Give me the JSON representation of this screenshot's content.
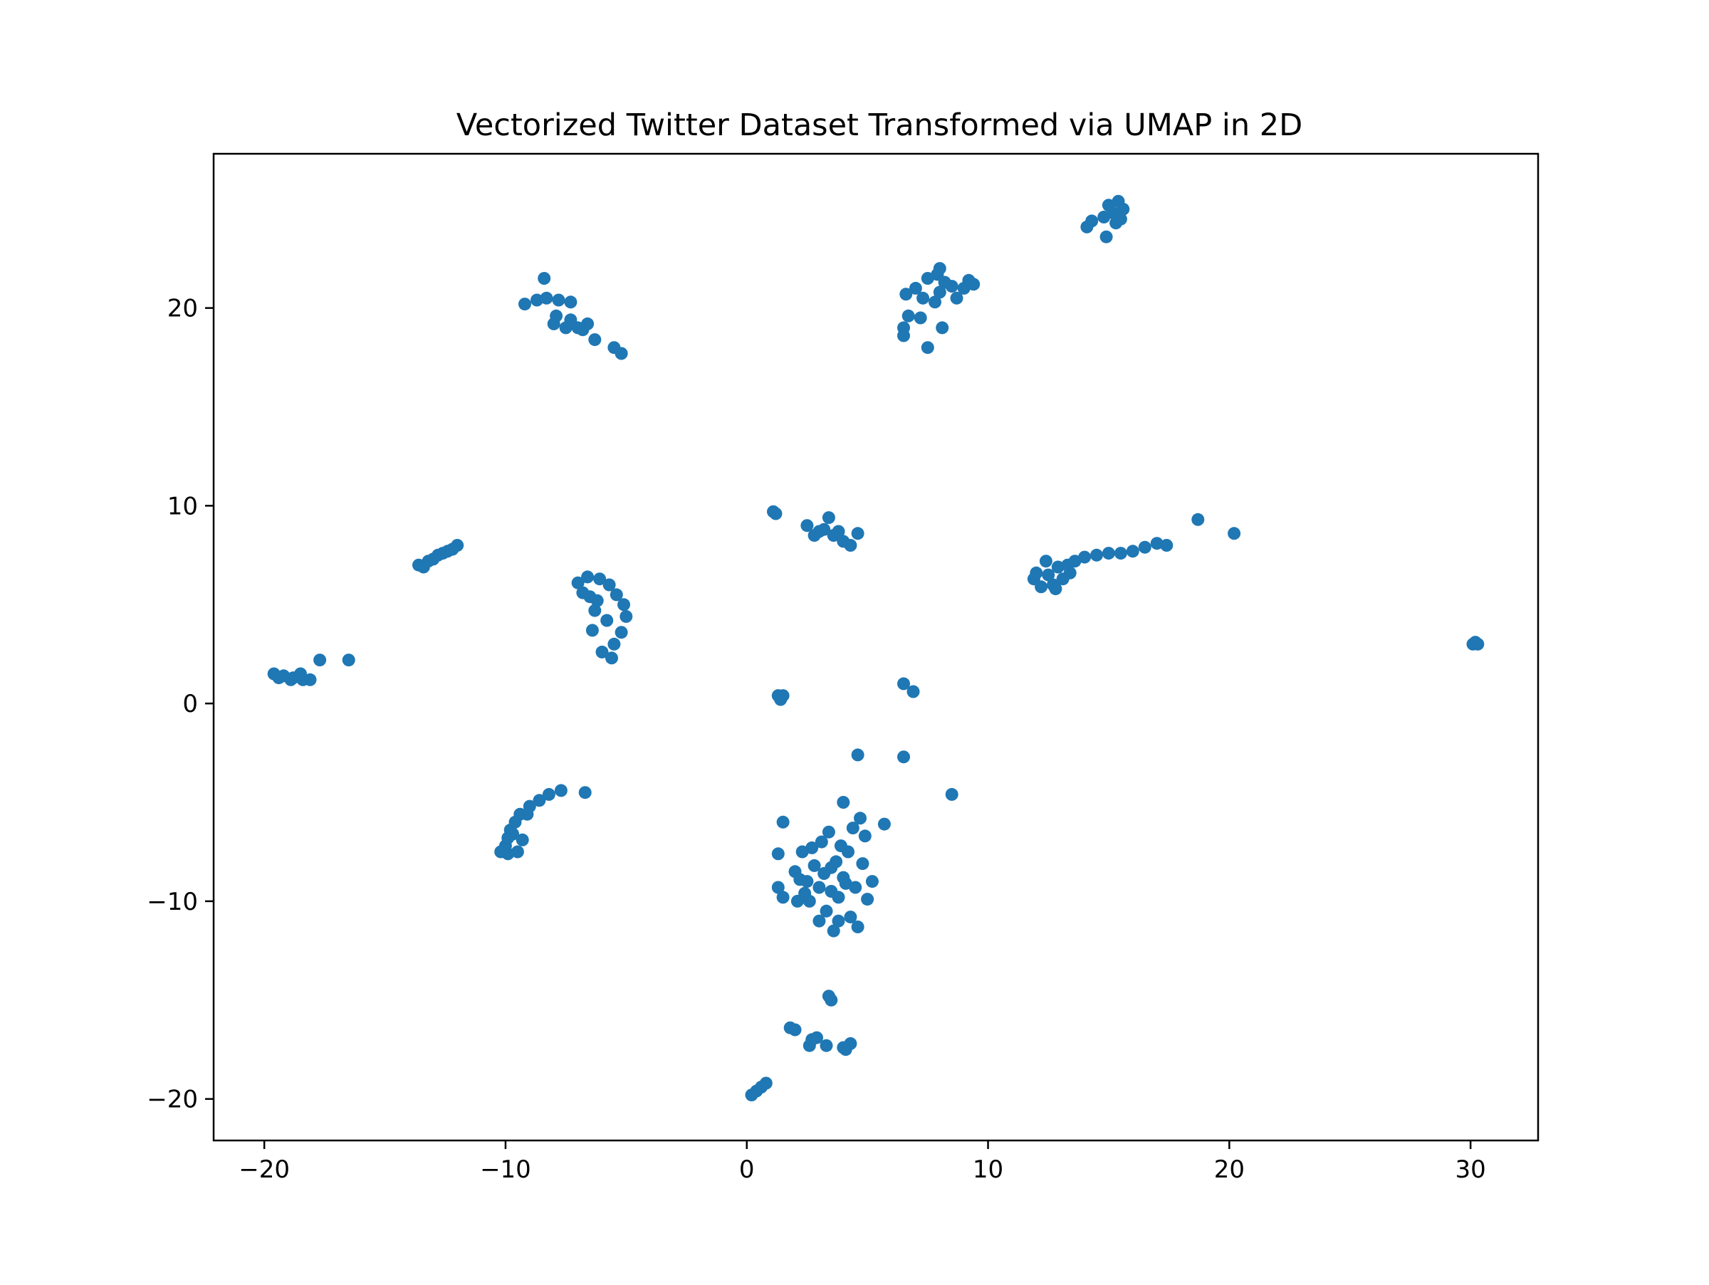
{
  "chart_data": {
    "type": "scatter",
    "title": "Vectorized Twitter Dataset Transformed via UMAP in 2D",
    "xlabel": "",
    "ylabel": "",
    "xlim": [
      -22.1,
      32.8
    ],
    "ylim": [
      -22.1,
      27.8
    ],
    "xticks": [
      -20,
      -10,
      0,
      10,
      20,
      30
    ],
    "yticks": [
      -20,
      -10,
      0,
      10,
      20
    ],
    "xtick_labels": [
      "−20",
      "−10",
      "0",
      "10",
      "20",
      "30"
    ],
    "ytick_labels": [
      "−20",
      "−10",
      "0",
      "10",
      "20"
    ],
    "grid": false,
    "legend": "none",
    "marker_color": "#1f77b4",
    "clusters": [
      {
        "points": [
          [
            -19.6,
            1.5
          ],
          [
            -19.2,
            1.4
          ],
          [
            -18.8,
            1.3
          ],
          [
            -18.4,
            1.2
          ],
          [
            -18.1,
            1.2
          ],
          [
            -18.5,
            1.5
          ],
          [
            -19.4,
            1.3
          ],
          [
            -17.7,
            2.2
          ],
          [
            -16.5,
            2.2
          ],
          [
            -18.9,
            1.2
          ]
        ]
      },
      {
        "points": [
          [
            -13.6,
            7.0
          ],
          [
            -13.2,
            7.2
          ],
          [
            -12.8,
            7.5
          ],
          [
            -12.4,
            7.7
          ],
          [
            -12.0,
            8.0
          ],
          [
            -13.0,
            7.3
          ],
          [
            -12.6,
            7.6
          ],
          [
            -13.4,
            6.9
          ],
          [
            -12.2,
            7.8
          ]
        ]
      },
      {
        "points": [
          [
            -9.9,
            -7.6
          ],
          [
            -10.0,
            -7.2
          ],
          [
            -9.9,
            -6.8
          ],
          [
            -9.8,
            -6.4
          ],
          [
            -9.6,
            -6.0
          ],
          [
            -9.4,
            -5.6
          ],
          [
            -9.0,
            -5.2
          ],
          [
            -8.6,
            -4.9
          ],
          [
            -8.2,
            -4.6
          ],
          [
            -7.7,
            -4.4
          ],
          [
            -6.7,
            -4.5
          ],
          [
            -9.5,
            -7.5
          ],
          [
            -9.3,
            -6.9
          ],
          [
            -10.2,
            -7.5
          ],
          [
            -9.7,
            -6.6
          ],
          [
            -9.1,
            -5.6
          ]
        ]
      },
      {
        "points": [
          [
            -9.2,
            20.2
          ],
          [
            -8.7,
            20.4
          ],
          [
            -8.3,
            20.5
          ],
          [
            -7.8,
            20.4
          ],
          [
            -7.3,
            20.3
          ],
          [
            -8.4,
            21.5
          ],
          [
            -8.0,
            19.2
          ],
          [
            -7.5,
            19.0
          ],
          [
            -7.0,
            19.0
          ],
          [
            -6.6,
            19.2
          ],
          [
            -7.3,
            19.4
          ],
          [
            -6.3,
            18.4
          ],
          [
            -5.5,
            18.0
          ],
          [
            -5.2,
            17.7
          ],
          [
            -7.9,
            19.6
          ],
          [
            -6.8,
            18.9
          ]
        ]
      },
      {
        "points": [
          [
            -7.0,
            6.1
          ],
          [
            -6.6,
            6.4
          ],
          [
            -6.1,
            6.3
          ],
          [
            -5.7,
            6.0
          ],
          [
            -5.4,
            5.5
          ],
          [
            -5.1,
            5.0
          ],
          [
            -5.0,
            4.4
          ],
          [
            -5.2,
            3.6
          ],
          [
            -5.5,
            3.0
          ],
          [
            -6.3,
            4.7
          ],
          [
            -6.4,
            3.7
          ],
          [
            -6.5,
            5.4
          ],
          [
            -6.0,
            2.6
          ],
          [
            -5.6,
            2.3
          ],
          [
            -6.8,
            5.6
          ],
          [
            -5.8,
            4.2
          ],
          [
            -6.2,
            5.2
          ]
        ]
      },
      {
        "points": [
          [
            0.2,
            -19.8
          ],
          [
            0.4,
            -19.6
          ],
          [
            0.6,
            -19.4
          ],
          [
            0.8,
            -19.2
          ],
          [
            1.8,
            -16.4
          ],
          [
            2.0,
            -16.5
          ],
          [
            2.6,
            -17.3
          ],
          [
            2.9,
            -16.9
          ],
          [
            3.3,
            -17.3
          ],
          [
            2.7,
            -17.0
          ],
          [
            3.5,
            -15.0
          ],
          [
            3.4,
            -14.8
          ],
          [
            4.1,
            -17.5
          ],
          [
            4.3,
            -17.2
          ],
          [
            4.0,
            -17.4
          ]
        ]
      },
      {
        "points": [
          [
            1.1,
            9.7
          ],
          [
            1.2,
            9.6
          ],
          [
            2.5,
            9.0
          ],
          [
            3.0,
            8.7
          ],
          [
            3.4,
            9.4
          ],
          [
            3.6,
            8.5
          ],
          [
            4.0,
            8.2
          ],
          [
            4.3,
            8.0
          ],
          [
            3.2,
            8.8
          ],
          [
            4.6,
            8.6
          ],
          [
            2.8,
            8.5
          ],
          [
            3.8,
            8.7
          ]
        ]
      },
      {
        "points": [
          [
            1.3,
            0.4
          ],
          [
            1.5,
            0.4
          ],
          [
            1.4,
            0.2
          ],
          [
            6.5,
            1.0
          ],
          [
            6.9,
            0.6
          ],
          [
            4.6,
            -2.6
          ],
          [
            6.5,
            -2.7
          ],
          [
            8.5,
            -4.6
          ]
        ]
      },
      {
        "points": [
          [
            1.3,
            -7.6
          ],
          [
            1.5,
            -6.0
          ],
          [
            1.3,
            -9.3
          ],
          [
            1.5,
            -9.8
          ],
          [
            2.0,
            -8.5
          ],
          [
            2.3,
            -7.5
          ],
          [
            2.5,
            -9.0
          ],
          [
            2.6,
            -10.0
          ],
          [
            2.8,
            -8.2
          ],
          [
            3.0,
            -9.3
          ],
          [
            3.1,
            -7.0
          ],
          [
            3.2,
            -8.6
          ],
          [
            3.3,
            -10.5
          ],
          [
            3.5,
            -9.5
          ],
          [
            3.4,
            -6.5
          ],
          [
            3.6,
            -11.5
          ],
          [
            3.7,
            -8.0
          ],
          [
            3.8,
            -9.8
          ],
          [
            4.0,
            -8.8
          ],
          [
            4.0,
            -5.0
          ],
          [
            4.2,
            -7.5
          ],
          [
            4.3,
            -10.8
          ],
          [
            4.5,
            -9.3
          ],
          [
            4.6,
            -11.3
          ],
          [
            4.8,
            -8.1
          ],
          [
            4.9,
            -6.7
          ],
          [
            5.0,
            -9.9
          ],
          [
            5.2,
            -9.0
          ],
          [
            5.7,
            -6.1
          ],
          [
            2.1,
            -10.0
          ],
          [
            2.2,
            -8.9
          ],
          [
            3.9,
            -7.2
          ],
          [
            2.7,
            -7.3
          ],
          [
            4.4,
            -6.3
          ],
          [
            3.0,
            -11.0
          ],
          [
            3.8,
            -11.0
          ],
          [
            4.7,
            -5.8
          ],
          [
            2.4,
            -9.6
          ],
          [
            4.1,
            -9.1
          ],
          [
            3.5,
            -8.3
          ]
        ]
      },
      {
        "points": [
          [
            6.5,
            19.0
          ],
          [
            6.7,
            19.6
          ],
          [
            6.6,
            20.7
          ],
          [
            7.0,
            21.0
          ],
          [
            7.3,
            20.5
          ],
          [
            7.5,
            21.5
          ],
          [
            7.9,
            21.7
          ],
          [
            8.2,
            21.3
          ],
          [
            8.0,
            20.8
          ],
          [
            8.5,
            21.1
          ],
          [
            9.0,
            21.0
          ],
          [
            9.4,
            21.2
          ],
          [
            8.7,
            20.5
          ],
          [
            7.5,
            18.0
          ],
          [
            7.2,
            19.5
          ],
          [
            8.1,
            19.0
          ],
          [
            8.0,
            22.0
          ],
          [
            9.2,
            21.4
          ],
          [
            6.5,
            18.6
          ],
          [
            7.8,
            20.3
          ]
        ]
      },
      {
        "points": [
          [
            11.9,
            6.3
          ],
          [
            12.2,
            5.9
          ],
          [
            12.5,
            6.5
          ],
          [
            12.7,
            6.0
          ],
          [
            12.9,
            6.9
          ],
          [
            13.1,
            6.3
          ],
          [
            13.3,
            7.0
          ],
          [
            13.6,
            7.2
          ],
          [
            14.0,
            7.4
          ],
          [
            14.5,
            7.5
          ],
          [
            15.0,
            7.6
          ],
          [
            15.5,
            7.6
          ],
          [
            16.0,
            7.7
          ],
          [
            16.5,
            7.9
          ],
          [
            17.0,
            8.1
          ],
          [
            17.4,
            8.0
          ],
          [
            18.7,
            9.3
          ],
          [
            20.2,
            8.6
          ],
          [
            12.4,
            7.2
          ],
          [
            12.8,
            5.8
          ],
          [
            13.4,
            6.6
          ],
          [
            12.0,
            6.6
          ]
        ]
      },
      {
        "points": [
          [
            14.1,
            24.1
          ],
          [
            14.3,
            24.4
          ],
          [
            14.8,
            24.6
          ],
          [
            15.0,
            25.2
          ],
          [
            15.2,
            24.8
          ],
          [
            15.4,
            25.4
          ],
          [
            15.6,
            25.0
          ],
          [
            15.3,
            24.3
          ],
          [
            14.9,
            23.6
          ],
          [
            15.5,
            24.5
          ]
        ]
      },
      {
        "points": [
          [
            30.2,
            3.1
          ],
          [
            30.3,
            3.0
          ],
          [
            30.1,
            3.0
          ]
        ]
      }
    ]
  }
}
